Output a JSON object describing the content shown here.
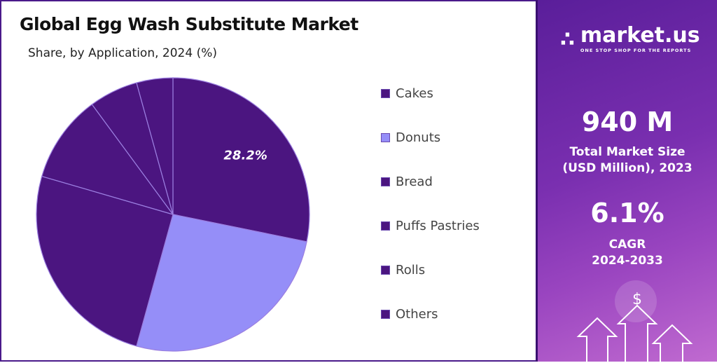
{
  "chart_data": {
    "type": "pie",
    "title": "Global Egg Wash Substitute Market",
    "subtitle": "Share, by Application, 2024 (%)",
    "categories": [
      "Cakes",
      "Donuts",
      "Bread",
      "Puffs Pastries",
      "Rolls",
      "Others"
    ],
    "values": [
      28.2,
      26.1,
      25.2,
      10.4,
      5.8,
      4.3
    ],
    "colors": [
      "#4b1580",
      "#958ef8",
      "#4b1580",
      "#4b1580",
      "#4b1580",
      "#4b1580"
    ],
    "data_labels": [
      "28.2%",
      "",
      "",
      "",
      "",
      ""
    ],
    "start": "12 o'clock, clockwise",
    "legend_position": "right"
  },
  "sidebar": {
    "brand": "market.us",
    "tagline": "ONE STOP SHOP FOR THE REPORTS",
    "market_size": "940 M",
    "market_size_label_1": "Total Market Size",
    "market_size_label_2": "(USD Million), 2023",
    "cagr": "6.1%",
    "cagr_label_1": "CAGR",
    "cagr_label_2": "2024-2033",
    "dollar": "$"
  }
}
